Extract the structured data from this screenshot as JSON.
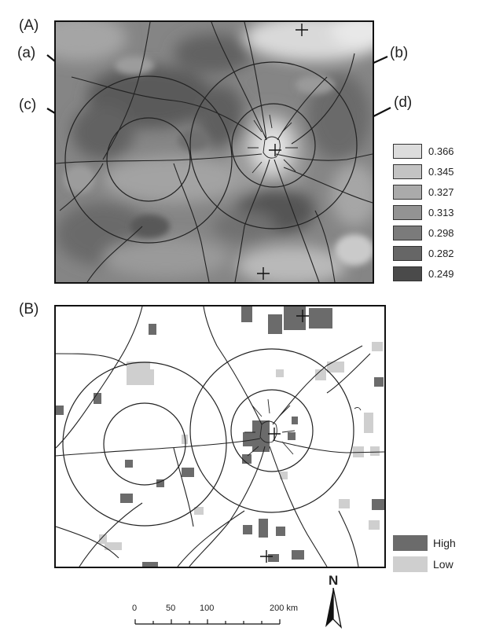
{
  "panel_a": {
    "label": "(A)",
    "circle_labels": {
      "a": "(a)",
      "b": "(b)",
      "c": "(c)",
      "d": "(d)"
    },
    "legend": [
      {
        "value": "0.366",
        "color": "#dcdcdc"
      },
      {
        "value": "0.345",
        "color": "#c3c3c3"
      },
      {
        "value": "0.327",
        "color": "#aaaaaa"
      },
      {
        "value": "0.313",
        "color": "#939393"
      },
      {
        "value": "0.298",
        "color": "#7b7b7b"
      },
      {
        "value": "0.282",
        "color": "#666666"
      },
      {
        "value": "0.249",
        "color": "#4a4a4a"
      }
    ]
  },
  "panel_b": {
    "label": "(B)",
    "legend": [
      {
        "label": "High",
        "color": "#6b6b6b"
      },
      {
        "label": "Low",
        "color": "#cfcfcf"
      }
    ]
  },
  "scale_bar": {
    "ticks": [
      "0",
      "50",
      "100",
      "200 km"
    ]
  },
  "north_arrow": {
    "label": "N"
  }
}
